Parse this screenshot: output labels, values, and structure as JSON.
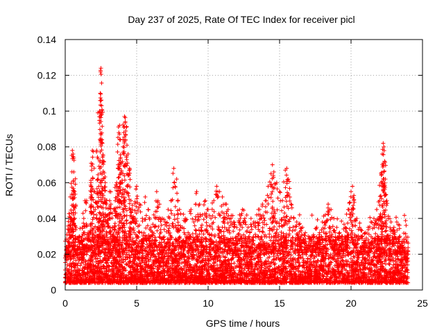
{
  "chart_data": {
    "type": "scatter",
    "title": "Day 237 of 2025, Rate Of TEC Index for receiver picl",
    "xlabel": "GPS time / hours",
    "ylabel": "ROTI / TECUs",
    "xlim": [
      0,
      25
    ],
    "ylim": [
      0,
      0.14
    ],
    "xticks": [
      0,
      5,
      10,
      15,
      20,
      25
    ],
    "xtick_labels": [
      "0",
      "5",
      "10",
      "15",
      "20",
      "25"
    ],
    "yticks": [
      0,
      0.02,
      0.04,
      0.06,
      0.08,
      0.1,
      0.12,
      0.14
    ],
    "ytick_labels": [
      "0",
      "0.02",
      "0.04",
      "0.06",
      "0.08",
      "0.1",
      "0.12",
      "0.14"
    ],
    "grid": true,
    "marker": "+",
    "color": "#ff0000",
    "series": [
      {
        "name": "ROTI",
        "points": [
          [
            0.1,
            0.012
          ],
          [
            0.2,
            0.025
          ],
          [
            0.3,
            0.041
          ],
          [
            0.35,
            0.052
          ],
          [
            0.4,
            0.038
          ],
          [
            0.5,
            0.078
          ],
          [
            0.55,
            0.076
          ],
          [
            0.6,
            0.066
          ],
          [
            0.65,
            0.055
          ],
          [
            0.7,
            0.03
          ],
          [
            0.8,
            0.02
          ],
          [
            0.9,
            0.015
          ],
          [
            1.0,
            0.03
          ],
          [
            1.1,
            0.018
          ],
          [
            1.2,
            0.035
          ],
          [
            1.3,
            0.04
          ],
          [
            1.4,
            0.025
          ],
          [
            1.5,
            0.05
          ],
          [
            1.6,
            0.032
          ],
          [
            1.7,
            0.028
          ],
          [
            1.8,
            0.06
          ],
          [
            1.85,
            0.067
          ],
          [
            1.9,
            0.078
          ],
          [
            2.0,
            0.055
          ],
          [
            2.1,
            0.045
          ],
          [
            2.2,
            0.078
          ],
          [
            2.3,
            0.062
          ],
          [
            2.35,
            0.058
          ],
          [
            2.4,
            0.1
          ],
          [
            2.45,
            0.11
          ],
          [
            2.5,
            0.124
          ],
          [
            2.55,
            0.103
          ],
          [
            2.6,
            0.082
          ],
          [
            2.65,
            0.075
          ],
          [
            2.7,
            0.072
          ],
          [
            2.8,
            0.06
          ],
          [
            2.9,
            0.05
          ],
          [
            3.0,
            0.042
          ],
          [
            3.1,
            0.055
          ],
          [
            3.2,
            0.048
          ],
          [
            3.3,
            0.035
          ],
          [
            3.4,
            0.045
          ],
          [
            3.5,
            0.05
          ],
          [
            3.6,
            0.06
          ],
          [
            3.7,
            0.07
          ],
          [
            3.75,
            0.088
          ],
          [
            3.8,
            0.092
          ],
          [
            3.85,
            0.084
          ],
          [
            3.9,
            0.065
          ],
          [
            4.0,
            0.06
          ],
          [
            4.1,
            0.088
          ],
          [
            4.15,
            0.097
          ],
          [
            4.2,
            0.094
          ],
          [
            4.3,
            0.075
          ],
          [
            4.4,
            0.076
          ],
          [
            4.5,
            0.068
          ],
          [
            4.6,
            0.05
          ],
          [
            4.7,
            0.045
          ],
          [
            4.8,
            0.04
          ],
          [
            5.0,
            0.058
          ],
          [
            5.2,
            0.048
          ],
          [
            5.4,
            0.04
          ],
          [
            5.6,
            0.052
          ],
          [
            5.8,
            0.045
          ],
          [
            6.0,
            0.035
          ],
          [
            6.2,
            0.042
          ],
          [
            6.4,
            0.055
          ],
          [
            6.6,
            0.048
          ],
          [
            6.8,
            0.04
          ],
          [
            7.0,
            0.038
          ],
          [
            7.2,
            0.045
          ],
          [
            7.4,
            0.05
          ],
          [
            7.6,
            0.068
          ],
          [
            7.8,
            0.062
          ],
          [
            8.0,
            0.045
          ],
          [
            8.2,
            0.035
          ],
          [
            8.4,
            0.04
          ],
          [
            8.6,
            0.032
          ],
          [
            8.8,
            0.045
          ],
          [
            9.0,
            0.038
          ],
          [
            9.2,
            0.055
          ],
          [
            9.4,
            0.048
          ],
          [
            9.6,
            0.042
          ],
          [
            9.8,
            0.05
          ],
          [
            10.0,
            0.045
          ],
          [
            10.2,
            0.04
          ],
          [
            10.4,
            0.05
          ],
          [
            10.6,
            0.058
          ],
          [
            10.8,
            0.055
          ],
          [
            11.0,
            0.052
          ],
          [
            11.2,
            0.048
          ],
          [
            11.4,
            0.045
          ],
          [
            11.6,
            0.04
          ],
          [
            11.8,
            0.038
          ],
          [
            12.0,
            0.035
          ],
          [
            12.2,
            0.042
          ],
          [
            12.4,
            0.045
          ],
          [
            12.6,
            0.038
          ],
          [
            12.8,
            0.035
          ],
          [
            13.0,
            0.04
          ],
          [
            13.2,
            0.038
          ],
          [
            13.4,
            0.042
          ],
          [
            13.6,
            0.045
          ],
          [
            13.8,
            0.048
          ],
          [
            14.0,
            0.05
          ],
          [
            14.2,
            0.058
          ],
          [
            14.4,
            0.065
          ],
          [
            14.5,
            0.07
          ],
          [
            14.6,
            0.066
          ],
          [
            14.8,
            0.06
          ],
          [
            15.0,
            0.055
          ],
          [
            15.2,
            0.05
          ],
          [
            15.4,
            0.067
          ],
          [
            15.5,
            0.068
          ],
          [
            15.6,
            0.062
          ],
          [
            15.8,
            0.048
          ],
          [
            16.0,
            0.04
          ],
          [
            16.2,
            0.038
          ],
          [
            16.4,
            0.042
          ],
          [
            16.6,
            0.035
          ],
          [
            16.8,
            0.032
          ],
          [
            17.0,
            0.03
          ],
          [
            17.2,
            0.028
          ],
          [
            17.4,
            0.03
          ],
          [
            17.6,
            0.035
          ],
          [
            17.8,
            0.032
          ],
          [
            18.0,
            0.038
          ],
          [
            18.2,
            0.042
          ],
          [
            18.4,
            0.048
          ],
          [
            18.6,
            0.045
          ],
          [
            18.8,
            0.04
          ],
          [
            19.0,
            0.035
          ],
          [
            19.2,
            0.032
          ],
          [
            19.4,
            0.03
          ],
          [
            19.6,
            0.035
          ],
          [
            19.8,
            0.045
          ],
          [
            20.0,
            0.055
          ],
          [
            20.1,
            0.058
          ],
          [
            20.2,
            0.05
          ],
          [
            20.4,
            0.04
          ],
          [
            20.6,
            0.035
          ],
          [
            20.8,
            0.03
          ],
          [
            21.0,
            0.032
          ],
          [
            21.2,
            0.035
          ],
          [
            21.4,
            0.038
          ],
          [
            21.6,
            0.04
          ],
          [
            21.8,
            0.045
          ],
          [
            22.0,
            0.05
          ],
          [
            22.1,
            0.06
          ],
          [
            22.2,
            0.07
          ],
          [
            22.25,
            0.082
          ],
          [
            22.3,
            0.08
          ],
          [
            22.35,
            0.072
          ],
          [
            22.4,
            0.062
          ],
          [
            22.5,
            0.05
          ],
          [
            22.6,
            0.04
          ],
          [
            22.8,
            0.038
          ],
          [
            23.0,
            0.035
          ],
          [
            23.2,
            0.038
          ],
          [
            23.4,
            0.03
          ],
          [
            23.6,
            0.025
          ],
          [
            23.8,
            0.02
          ],
          [
            23.95,
            0.018
          ]
        ]
      }
    ],
    "background_band": {
      "description": "dense cluster of ROTI points filling the 0.005-0.03 range across 0-24 h",
      "x_range": [
        0,
        24
      ],
      "y_min": 0.004,
      "y_typical_max": 0.03
    }
  }
}
